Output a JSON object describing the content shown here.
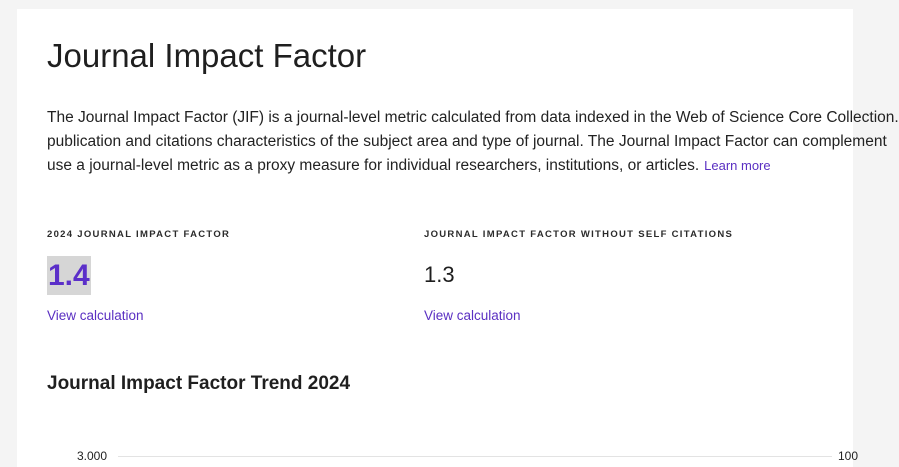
{
  "page": {
    "title": "Journal Impact Factor",
    "description": {
      "line1": "The Journal Impact Factor (JIF) is a journal-level metric calculated from data indexed in the Web of Science Core Collection.",
      "line2": "publication and citations characteristics of the subject area and type of journal. The Journal Impact Factor can complement",
      "line3": "use a journal-level metric as a proxy measure for individual researchers, institutions, or articles.",
      "learn_more_label": "Learn more"
    }
  },
  "metrics": [
    {
      "label": "2024 JOURNAL IMPACT FACTOR",
      "value": "1.4",
      "link_label": "View calculation",
      "highlighted": true,
      "value_color": "#5b2fc9"
    },
    {
      "label": "JOURNAL IMPACT FACTOR WITHOUT SELF CITATIONS",
      "value": "1.3",
      "link_label": "View calculation",
      "highlighted": false,
      "value_color": "#1e1e1e"
    }
  ],
  "trend": {
    "title": "Journal Impact Factor Trend 2024",
    "left_axis_top_tick": "3.000",
    "right_axis_top_tick": "100"
  },
  "colors": {
    "accent": "#5a2fc2",
    "highlight_bg": "#d6d6d6",
    "page_bg": "#f4f4f4",
    "card_bg": "#ffffff"
  }
}
